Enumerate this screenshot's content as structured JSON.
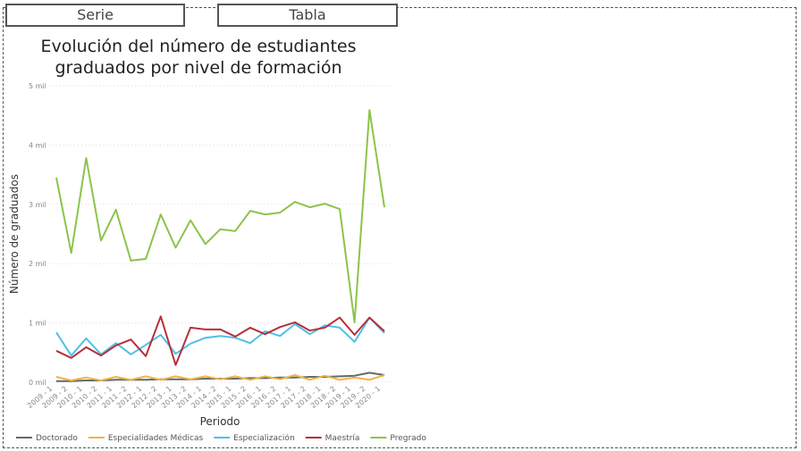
{
  "buttons": [
    "Serie",
    "Tabla"
  ],
  "chart_data": {
    "type": "line",
    "title": "Evolución del número de estudiantes graduados por nivel de formación",
    "x_label": "Periodo",
    "y_label": "Número de graduados",
    "categories": [
      "2009 - 1",
      "2009 - 2",
      "2010 - 1",
      "2010 - 2",
      "2011 - 1",
      "2011 - 2",
      "2012 - 1",
      "2012 - 2",
      "2013 - 1",
      "2013 - 2",
      "2014 - 1",
      "2014 - 2",
      "2015 - 1",
      "2015 - 2",
      "2016 - 1",
      "2016 - 2",
      "2017 - 1",
      "2017 - 2",
      "2018 - 1",
      "2018 - 2",
      "2019 - 1",
      "2019 - 2",
      "2020 - 1"
    ],
    "series": [
      {
        "name": "Doctorado",
        "color": "#5f6b6d",
        "values": [
          20,
          20,
          30,
          30,
          40,
          40,
          40,
          50,
          50,
          50,
          60,
          60,
          60,
          70,
          70,
          80,
          80,
          90,
          90,
          100,
          110,
          160,
          120
        ]
      },
      {
        "name": "Especialidades Médicas",
        "color": "#f2b345",
        "values": [
          90,
          30,
          80,
          30,
          90,
          40,
          100,
          40,
          100,
          50,
          100,
          50,
          100,
          40,
          100,
          50,
          120,
          40,
          110,
          40,
          80,
          40,
          120
        ]
      },
      {
        "name": "Especialización",
        "color": "#4ec0e8",
        "values": [
          840,
          450,
          740,
          470,
          660,
          470,
          630,
          800,
          480,
          650,
          750,
          780,
          750,
          660,
          860,
          780,
          980,
          810,
          960,
          920,
          680,
          1090,
          830
        ]
      },
      {
        "name": "Maestría",
        "color": "#b5303a",
        "values": [
          530,
          410,
          590,
          450,
          620,
          720,
          440,
          1110,
          290,
          920,
          890,
          890,
          770,
          920,
          810,
          930,
          1010,
          870,
          920,
          1090,
          800,
          1090,
          860
        ]
      },
      {
        "name": "Pregrado",
        "color": "#8dc34a",
        "values": [
          3450,
          2180,
          3780,
          2390,
          2910,
          2050,
          2080,
          2830,
          2270,
          2730,
          2330,
          2580,
          2550,
          2890,
          2830,
          2860,
          3040,
          2950,
          3010,
          2920,
          1010,
          4590,
          2950
        ]
      }
    ],
    "ylim": [
      0,
      5000
    ],
    "yticks": [
      {
        "value": 0,
        "label": "0 mil"
      },
      {
        "value": 1000,
        "label": "1 mil"
      },
      {
        "value": 2000,
        "label": "2 mil"
      },
      {
        "value": 3000,
        "label": "3 mil"
      },
      {
        "value": 4000,
        "label": "4 mil"
      },
      {
        "value": 5000,
        "label": "5 mil"
      }
    ],
    "grid": true,
    "legend": "bottom-left"
  }
}
